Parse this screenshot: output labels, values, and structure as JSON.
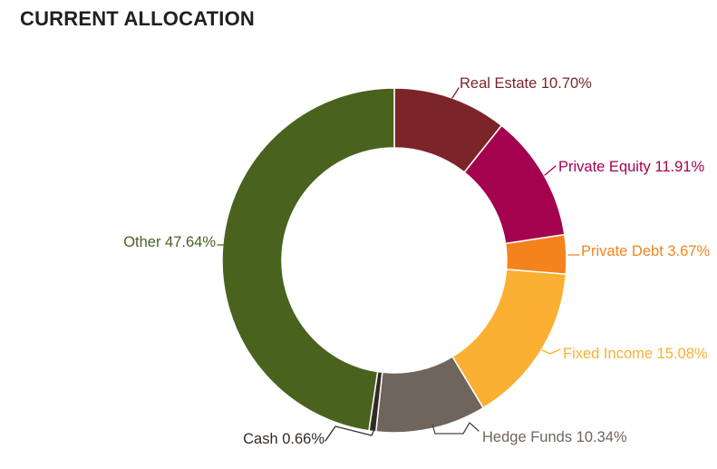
{
  "header": {
    "title": "CURRENT ALLOCATION",
    "title_color": "#231F20"
  },
  "chart_data": {
    "type": "pie",
    "variant": "donut",
    "title": "CURRENT ALLOCATION",
    "start_angle_deg": 0,
    "direction": "clockwise",
    "inner_radius_ratio": 0.65,
    "legend_position": "callout-labels",
    "background": "#FFFFFF",
    "separator_color": "#FFFFFF",
    "segments": [
      {
        "label": "Real Estate",
        "value": 10.7,
        "value_label": "10.70%",
        "color": "#7B2529"
      },
      {
        "label": "Private Equity",
        "value": 11.91,
        "value_label": "11.91%",
        "color": "#A4024F"
      },
      {
        "label": "Private Debt",
        "value": 3.67,
        "value_label": "3.67%",
        "color": "#F5831D"
      },
      {
        "label": "Fixed Income",
        "value": 15.08,
        "value_label": "15.08%",
        "color": "#FBB034"
      },
      {
        "label": "Hedge Funds",
        "value": 10.34,
        "value_label": "10.34%",
        "color": "#6F655C"
      },
      {
        "label": "Cash",
        "value": 0.66,
        "value_label": "0.66%",
        "color": "#332A25"
      },
      {
        "label": "Other",
        "value": 47.64,
        "value_label": "47.64%",
        "color": "#49631F"
      }
    ]
  }
}
